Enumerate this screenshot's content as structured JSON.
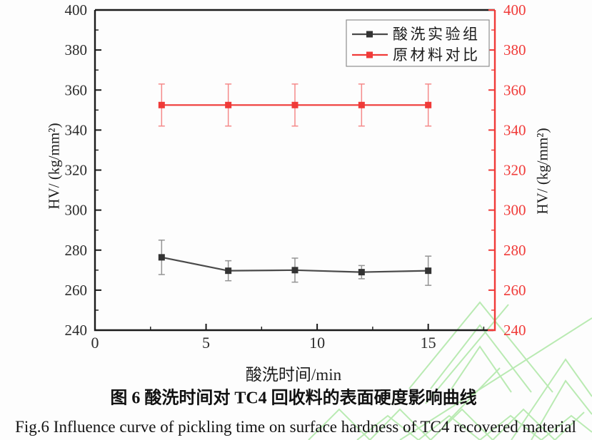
{
  "figure": {
    "caption_zh": "图 6 酸洗时间对 TC4 回收料的表面硬度影响曲线",
    "caption_en": "Fig.6 Influence curve of pickling time on surface hardness of TC4 recovered material"
  },
  "chart_data": {
    "type": "line",
    "title": "",
    "xlabel": "酸洗时间/min",
    "ylabel_left": "HV/ (kg/mm²)",
    "ylabel_right": "HV/ (kg/mm²)",
    "xlim": [
      0,
      18
    ],
    "ylim": [
      240,
      400
    ],
    "x_major_ticks": [
      0,
      5,
      10,
      15
    ],
    "x_minor_ticks": [
      2.5,
      7.5,
      12.5,
      17.5
    ],
    "y_major_ticks": [
      240,
      260,
      280,
      300,
      320,
      340,
      360,
      380,
      400
    ],
    "y_minor_ticks": [
      250,
      270,
      290,
      310,
      330,
      350,
      370,
      390
    ],
    "grid": false,
    "legend_position": "top-right-inside",
    "x": [
      3,
      6,
      9,
      12,
      15
    ],
    "series": [
      {
        "name": "酸洗实验组",
        "values": [
          276.4,
          269.7,
          270.0,
          269.0,
          269.7
        ],
        "errors": [
          8.6,
          5.0,
          6.0,
          3.3,
          7.3
        ],
        "color": "#4a4a4a",
        "marker_color": "#333333",
        "errorbar_color": "#949494"
      },
      {
        "name": "原材料对比",
        "values": [
          352.5,
          352.5,
          352.5,
          352.5,
          352.5
        ],
        "errors": [
          10.5,
          10.5,
          10.5,
          10.5,
          10.5
        ],
        "color": "#f03a38",
        "marker_color": "#f03a38",
        "errorbar_color": "#f58a8a"
      }
    ],
    "axis_colors": {
      "left": "#1a1a1a",
      "bottom": "#1a1a1a",
      "top": "#1a1a1a",
      "right": "#f03a38"
    },
    "tick_label_colors": {
      "left": "#2b2b2b",
      "bottom": "#2b2b2b",
      "right": "#f03a38"
    }
  },
  "watermark": {
    "color": "#a9e6a0"
  }
}
